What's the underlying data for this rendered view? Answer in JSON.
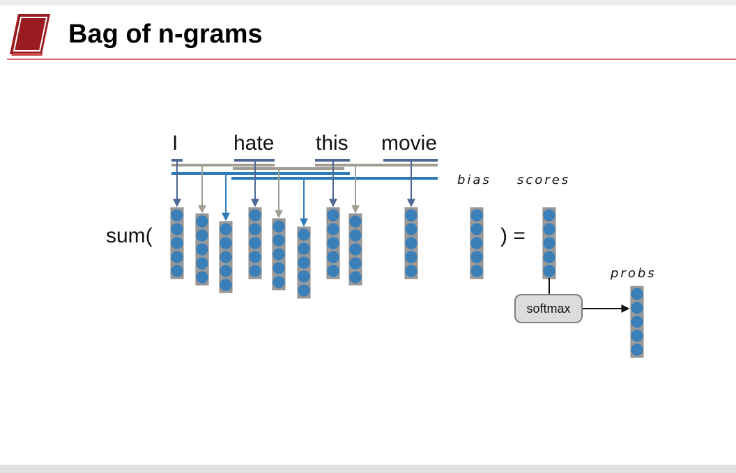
{
  "slide": {
    "title": "Bag of n-grams"
  },
  "words": [
    "I",
    "hate",
    "this",
    "movie"
  ],
  "labels": {
    "bias": "bias",
    "scores": "scores",
    "probs": "probs"
  },
  "sum_open": "sum(",
  "sum_close": ") =",
  "softmax_label": "softmax",
  "colors": {
    "unigram": "#4f6794",
    "bigram": "#a19d93",
    "trigram": "#2f7bb7",
    "node": "#3a7fb8",
    "title_rule": "#d7707a",
    "logo": "#9b1c20"
  },
  "icons": {
    "logo": "book-icon"
  }
}
